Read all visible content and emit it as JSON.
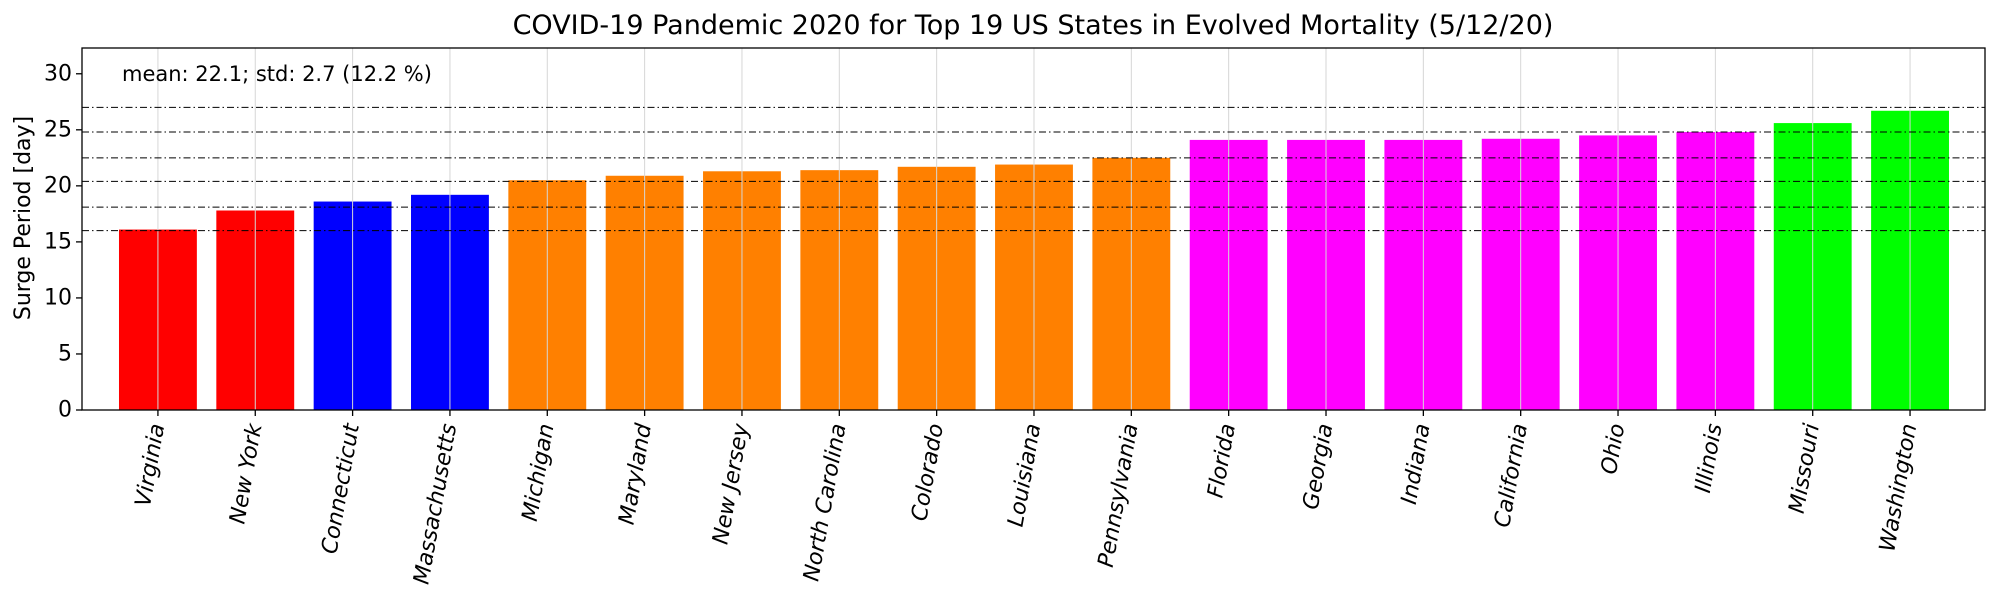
{
  "chart_data": {
    "type": "bar",
    "title": "COVID-19 Pandemic 2020 for Top 19 US States in Evolved Mortality (5/12/20)",
    "xlabel": "",
    "ylabel": "Surge Period [day]",
    "ylim": [
      0,
      32.3
    ],
    "yticks": [
      0,
      5,
      10,
      15,
      20,
      25,
      30
    ],
    "grid": "vertical",
    "annotation": "mean: 22.1; std: 2.7 (12.2 %)",
    "reference_lines": [
      16.0,
      18.1,
      20.4,
      22.5,
      24.8,
      27.0
    ],
    "categories": [
      "Virginia",
      "New York",
      "Connecticut",
      "Massachusetts",
      "Michigan",
      "Maryland",
      "New Jersey",
      "North Carolina",
      "Colorado",
      "Louisiana",
      "Pennsylvania",
      "Florida",
      "Georgia",
      "Indiana",
      "California",
      "Ohio",
      "Illinois",
      "Missouri",
      "Washington"
    ],
    "values": [
      16.1,
      17.8,
      18.6,
      19.2,
      20.5,
      20.9,
      21.3,
      21.4,
      21.7,
      21.9,
      22.5,
      24.1,
      24.1,
      24.1,
      24.2,
      24.5,
      24.8,
      25.6,
      26.7
    ],
    "colors": [
      "#ff0000",
      "#ff0000",
      "#0000ff",
      "#0000ff",
      "#ff8000",
      "#ff8000",
      "#ff8000",
      "#ff8000",
      "#ff8000",
      "#ff8000",
      "#ff8000",
      "#ff00ff",
      "#ff00ff",
      "#ff00ff",
      "#ff00ff",
      "#ff00ff",
      "#ff00ff",
      "#00ff00",
      "#00ff00"
    ]
  }
}
